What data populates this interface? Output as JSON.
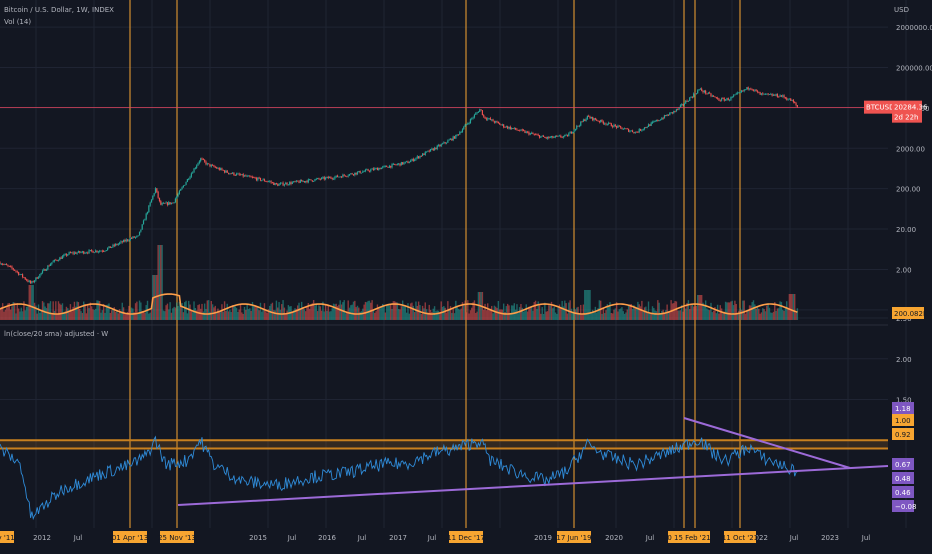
{
  "header": {
    "symbol_line": "Bitcoin / U.S. Dollar, 1W, INDEX",
    "volume_line": "Vol (14)",
    "indicator_line": "ln(close/20 sma) adjusted · W",
    "currency": "USD"
  },
  "price_tag": {
    "symbol": "BTCUSD",
    "price": "20284.36",
    "countdown": "2d 22h"
  },
  "volume_tag": "200.082K",
  "colors": {
    "background": "#131722",
    "grid": "#1f2433",
    "up": "#26a69a",
    "down": "#ef5350",
    "volume_ma": "#ff9f4a",
    "orange_lines": "#f7a531",
    "indicator": "#2f8bd8",
    "trendline": "#9c6ad8",
    "price_line": "#e14662",
    "band": "#c8801f",
    "tag_orange": "#f7a531",
    "tag_purple": "#7e57c2",
    "tag_red": "#ef5350"
  },
  "chart_data": [
    {
      "type": "line",
      "title": "Bitcoin / U.S. Dollar, 1W, INDEX",
      "ylabel": "USD",
      "log_scale": true,
      "ylim": [
        0.1,
        3000000
      ],
      "yticks": [
        "2000000.00",
        "200000.00",
        "20000.00",
        "2000.00",
        "200.00",
        "20.00",
        "2.00",
        "0.20"
      ],
      "series": [
        {
          "name": "BTCUSD",
          "x": [
            2011.0,
            2011.2,
            2011.45,
            2011.75,
            2012.0,
            2012.5,
            2012.9,
            2013.0,
            2013.25,
            2013.32,
            2013.5,
            2013.9,
            2014.0,
            2014.3,
            2014.9,
            2015.0,
            2015.9,
            2016.5,
            2016.9,
            2017.4,
            2017.6,
            2017.95,
            2018.0,
            2018.3,
            2018.9,
            2019.2,
            2019.5,
            2019.9,
            2020.2,
            2020.5,
            2020.8,
            2021.12,
            2021.4,
            2021.55,
            2021.85,
            2022.0,
            2022.3,
            2022.46,
            2022.55
          ],
          "values": [
            3,
            2,
            0.9,
            3,
            5,
            6,
            12,
            13,
            200,
            80,
            90,
            1100,
            800,
            500,
            300,
            250,
            400,
            650,
            900,
            2500,
            4000,
            19000,
            12000,
            7000,
            3600,
            4000,
            12000,
            7000,
            5000,
            9500,
            18000,
            58000,
            32000,
            33000,
            66000,
            43000,
            40000,
            30000,
            20284
          ]
        }
      ]
    },
    {
      "type": "bar",
      "title": "Vol (14)",
      "yticks": [
        "200.082K"
      ]
    },
    {
      "type": "line",
      "title": "ln(close/20 sma) adjusted · W",
      "ylim": [
        -0.1,
        2.5
      ],
      "yticks": [
        "2.50",
        "2.00",
        "1.50",
        "0.20"
      ],
      "series": [
        {
          "name": "ln(close/20 sma) adjusted",
          "x": [
            2011.0,
            2011.3,
            2011.45,
            2011.9,
            2012.5,
            2012.9,
            2013.1,
            2013.25,
            2013.4,
            2013.7,
            2013.9,
            2014.1,
            2014.5,
            2015.0,
            2015.5,
            2016.0,
            2016.5,
            2016.9,
            2017.3,
            2017.6,
            2017.95,
            2018.1,
            2018.5,
            2018.9,
            2019.2,
            2019.5,
            2019.8,
            2020.2,
            2020.5,
            2020.8,
            2021.12,
            2021.3,
            2021.5,
            2021.7,
            2021.85,
            2022.0,
            2022.3,
            2022.46
          ],
          "values": [
            0.9,
            0.7,
            0.05,
            0.4,
            0.6,
            0.7,
            0.8,
            1.0,
            0.7,
            0.75,
            1.0,
            0.7,
            0.5,
            0.45,
            0.55,
            0.6,
            0.7,
            0.72,
            0.85,
            0.9,
            1.0,
            0.75,
            0.6,
            0.5,
            0.62,
            0.95,
            0.8,
            0.7,
            0.8,
            0.9,
            1.02,
            0.85,
            0.75,
            0.85,
            0.92,
            0.8,
            0.7,
            0.63
          ]
        }
      ],
      "band": [
        0.9,
        1.0
      ]
    }
  ],
  "axis_right": {
    "price_ticks": [
      "2000000.00",
      "200000.00",
      "20000.00",
      "2000.00",
      "200.00",
      "20.00",
      "2.00",
      "0.20"
    ],
    "indicator_ticks": [
      "2.50",
      "2.00",
      "1.50",
      "0.20"
    ],
    "indicator_tags": [
      "1.18",
      "1.00",
      "0.92",
      "0.67",
      "0.48",
      "0.46",
      "−0.08"
    ]
  },
  "x_axis": {
    "plain_labels": [
      "2012",
      "Jul",
      "2015",
      "Jul",
      "2016",
      "Jul",
      "2017",
      "Jul",
      "2019",
      "Jul",
      "2020",
      "Jul",
      "2022",
      "Jul",
      "2023",
      "Jul"
    ],
    "highlighted_labels": [
      "ay '11",
      "01 Apr '13",
      "25 Nov '13",
      "11 Dec '17",
      "17 Jun '19",
      "0 15 Feb '21",
      "11 Oct '21"
    ]
  }
}
